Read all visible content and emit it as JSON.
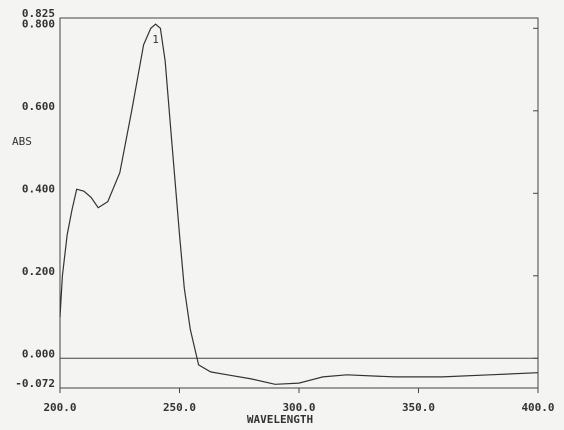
{
  "chart_data": {
    "type": "line",
    "y_label": "ABS",
    "x_label": "WAVELENGTH",
    "peak_label": "1",
    "xlim": [
      200,
      400
    ],
    "ylim": [
      -0.072,
      0.825
    ],
    "xticks": [
      {
        "value": 200,
        "label": "200.0"
      },
      {
        "value": 250,
        "label": "250.0"
      },
      {
        "value": 300,
        "label": "300.0"
      },
      {
        "value": 350,
        "label": "350.0"
      },
      {
        "value": 400,
        "label": "400.0"
      }
    ],
    "yticks": [
      {
        "value": -0.072,
        "label": "-0.072"
      },
      {
        "value": 0,
        "label": "0.000"
      },
      {
        "value": 0.2,
        "label": "0.200"
      },
      {
        "value": 0.4,
        "label": "0.400"
      },
      {
        "value": 0.6,
        "label": "0.600"
      },
      {
        "value": 0.8,
        "label": "0.800"
      },
      {
        "value": 0.825,
        "label": "0.825"
      }
    ],
    "color": "#333333",
    "x": [
      200,
      201,
      203,
      205,
      207,
      210,
      213,
      216,
      220,
      225,
      230,
      235,
      238,
      240,
      242,
      244,
      246,
      248,
      250,
      252,
      254.5,
      258,
      263,
      270,
      280,
      290,
      300,
      310,
      320,
      340,
      360,
      380,
      400
    ],
    "values": [
      0.1,
      0.2,
      0.3,
      0.36,
      0.41,
      0.405,
      0.39,
      0.365,
      0.38,
      0.45,
      0.6,
      0.76,
      0.8,
      0.81,
      0.8,
      0.72,
      0.58,
      0.44,
      0.3,
      0.17,
      0.07,
      -0.016,
      -0.033,
      -0.04,
      -0.05,
      -0.063,
      -0.06,
      -0.045,
      -0.04,
      -0.045,
      -0.045,
      -0.04,
      -0.035
    ]
  }
}
